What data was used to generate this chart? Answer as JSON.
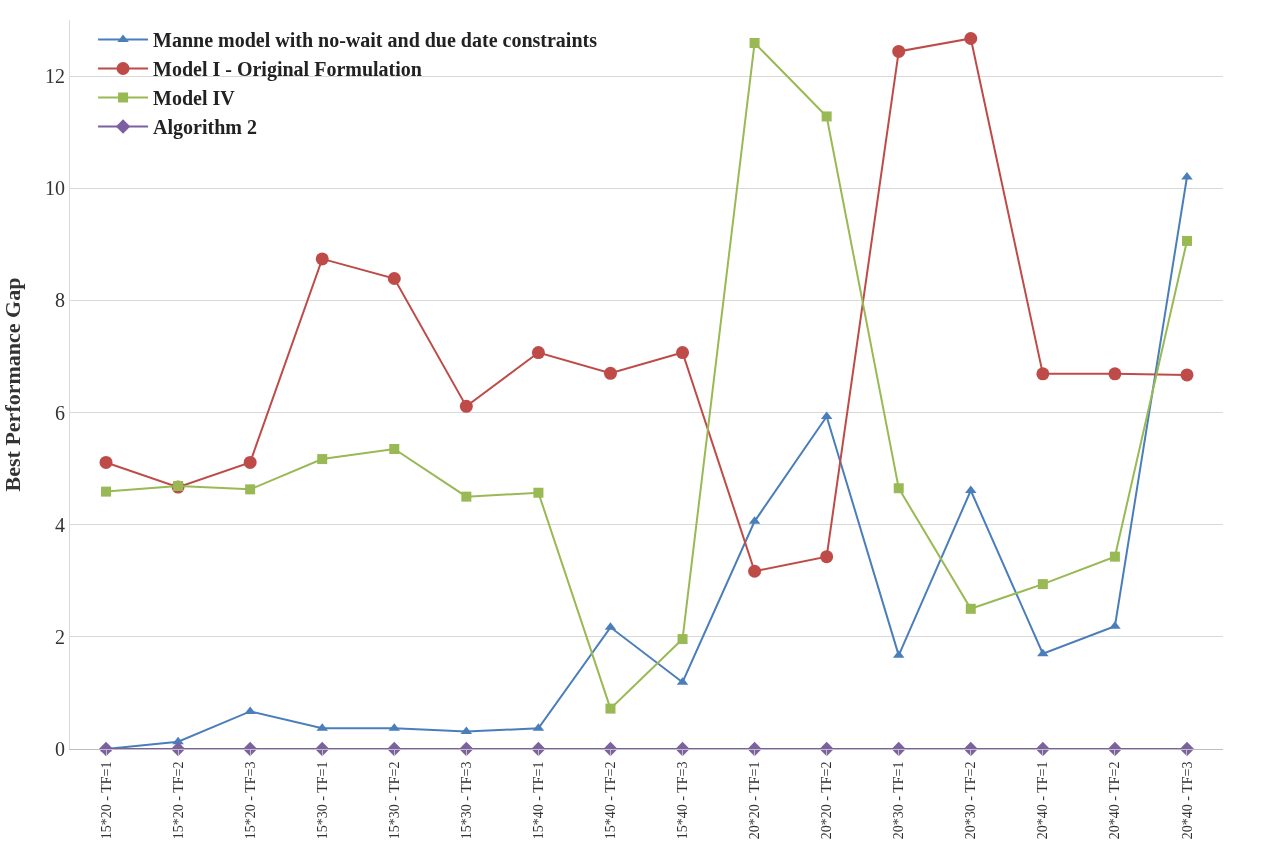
{
  "chart_data": {
    "type": "line",
    "ylabel": "Best Performance Gap",
    "categories": [
      "15*20 - TF=1",
      "15*20 - TF=2",
      "15*20 - TF=3",
      "15*30 - TF=1",
      "15*30 - TF=2",
      "15*30 - TF=3",
      "15*40 - TF=1",
      "15*40 - TF=2",
      "15*40 - TF=3",
      "20*20 - TF=1",
      "20*20 - TF=2",
      "20*30 - TF=1",
      "20*30 - TF=2",
      "20*40 - TF=1",
      "20*40 - TF=2",
      "20*40 - TF=3"
    ],
    "series": [
      {
        "name": "Manne model with no-wait and due date constraints",
        "color": "#4a7ebb",
        "marker": "triangle",
        "values": [
          0,
          0.13,
          0.67,
          0.37,
          0.37,
          0.31,
          0.37,
          2.17,
          1.19,
          4.06,
          5.93,
          1.67,
          4.61,
          1.7,
          2.19,
          10.2
        ]
      },
      {
        "name": "Model I - Original Formulation",
        "color": "#be4b48",
        "marker": "circle",
        "values": [
          5.11,
          4.67,
          5.11,
          8.74,
          8.39,
          6.11,
          7.07,
          6.7,
          7.07,
          3.17,
          3.43,
          12.44,
          12.67,
          6.69,
          6.69,
          6.67
        ]
      },
      {
        "name": "Model IV",
        "color": "#98b954",
        "marker": "square",
        "values": [
          4.59,
          4.69,
          4.63,
          5.17,
          5.35,
          4.5,
          4.57,
          0.72,
          1.96,
          12.59,
          11.28,
          4.65,
          2.5,
          2.94,
          3.43,
          9.06
        ]
      },
      {
        "name": "Algorithm 2",
        "color": "#7d60a0",
        "marker": "diamond",
        "values": [
          0,
          0,
          0,
          0,
          0,
          0,
          0,
          0,
          0,
          0,
          0,
          0,
          0,
          0,
          0,
          0
        ]
      }
    ],
    "ylim": [
      0,
      13
    ],
    "yticks": [
      0,
      2,
      4,
      6,
      8,
      10,
      12
    ],
    "grid": "y",
    "legend": "top left",
    "line_style": "solid"
  }
}
